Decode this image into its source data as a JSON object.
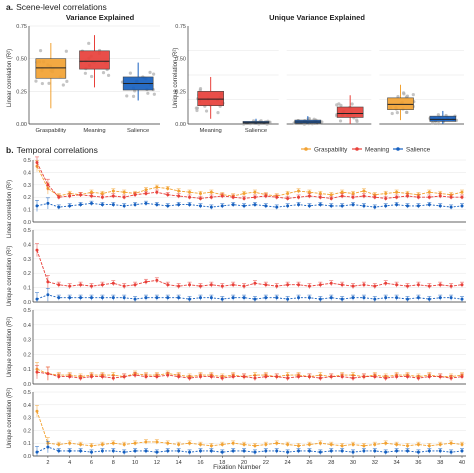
{
  "panel_a": {
    "label": "a.",
    "title": "Scene-level correlations"
  },
  "panel_b": {
    "label": "b.",
    "title": "Temporal correlations"
  },
  "colors": {
    "graspability": "#f2a232",
    "meaning": "#e8403a",
    "salience": "#1660c0",
    "grid": "#e6e6e6",
    "axis": "#333333",
    "points": "#b0b0b0"
  },
  "legend": {
    "items": [
      "Graspability",
      "Meaning",
      "Salience"
    ],
    "placement": "top-right"
  },
  "chart_data": [
    {
      "type": "box",
      "title": "Variance Explained",
      "ylabel": "Linear correlation (R²)",
      "ylim": [
        0,
        0.75
      ],
      "yticks": [
        "0.00",
        "0.25",
        "0.50",
        "0.75"
      ],
      "categories": [
        "Graspability",
        "Meaning",
        "Salience"
      ],
      "boxes": [
        {
          "name": "Graspability",
          "min": 0.12,
          "q1": 0.35,
          "median": 0.43,
          "q3": 0.5,
          "max": 0.62
        },
        {
          "name": "Meaning",
          "min": 0.28,
          "q1": 0.42,
          "median": 0.48,
          "q3": 0.56,
          "max": 0.68
        },
        {
          "name": "Salience",
          "min": 0.18,
          "q1": 0.26,
          "median": 0.31,
          "q3": 0.36,
          "max": 0.47
        }
      ]
    },
    {
      "type": "box",
      "title": "Unique Variance Explained",
      "ylabel": "Unique correlation (R²)",
      "ylim": [
        0,
        0.75
      ],
      "yticks": [
        "0.00",
        "0.25",
        "0.50",
        "0.75"
      ],
      "groups": [
        {
          "categories": [
            "Meaning",
            "Salience"
          ],
          "boxes": [
            {
              "name": "Meaning",
              "min": 0.04,
              "q1": 0.14,
              "median": 0.19,
              "q3": 0.25,
              "max": 0.36
            },
            {
              "name": "Salience",
              "min": 0.0,
              "q1": 0.005,
              "median": 0.01,
              "q3": 0.02,
              "max": 0.04
            }
          ]
        },
        {
          "categories": [],
          "boxes": [
            {
              "name": "Salience",
              "min": 0.0,
              "q1": 0.005,
              "median": 0.015,
              "q3": 0.03,
              "max": 0.06
            },
            {
              "name": "Meaning",
              "min": 0.0,
              "q1": 0.05,
              "median": 0.08,
              "q3": 0.13,
              "max": 0.22
            }
          ]
        },
        {
          "categories": [],
          "boxes": [
            {
              "name": "Graspability",
              "min": 0.03,
              "q1": 0.11,
              "median": 0.15,
              "q3": 0.2,
              "max": 0.3
            },
            {
              "name": "Salience",
              "min": 0.0,
              "q1": 0.02,
              "median": 0.035,
              "q3": 0.06,
              "max": 0.1
            }
          ]
        }
      ]
    },
    {
      "type": "line",
      "ylabel": "Linear correlation (R²)",
      "ylim": [
        0,
        0.5
      ],
      "yticks": [
        "0.0",
        "0.1",
        "0.2",
        "0.3",
        "0.4",
        "0.5"
      ],
      "series": [
        {
          "name": "Graspability",
          "values": [
            0.45,
            0.27,
            0.21,
            0.23,
            0.22,
            0.24,
            0.23,
            0.25,
            0.24,
            0.23,
            0.26,
            0.28,
            0.27,
            0.25,
            0.24,
            0.23,
            0.24,
            0.22,
            0.21,
            0.23,
            0.24,
            0.22,
            0.21,
            0.23,
            0.25,
            0.24,
            0.23,
            0.22,
            0.24,
            0.23,
            0.25,
            0.22,
            0.23,
            0.24,
            0.23,
            0.22,
            0.24,
            0.23,
            0.22,
            0.24
          ]
        },
        {
          "name": "Meaning",
          "values": [
            0.48,
            0.3,
            0.2,
            0.21,
            0.22,
            0.21,
            0.2,
            0.21,
            0.2,
            0.22,
            0.23,
            0.24,
            0.22,
            0.21,
            0.2,
            0.19,
            0.2,
            0.21,
            0.2,
            0.19,
            0.2,
            0.21,
            0.2,
            0.19,
            0.2,
            0.21,
            0.2,
            0.19,
            0.21,
            0.2,
            0.21,
            0.2,
            0.19,
            0.2,
            0.21,
            0.2,
            0.2,
            0.21,
            0.2,
            0.2
          ]
        },
        {
          "name": "Salience",
          "values": [
            0.13,
            0.15,
            0.12,
            0.13,
            0.14,
            0.15,
            0.14,
            0.14,
            0.13,
            0.14,
            0.15,
            0.14,
            0.13,
            0.14,
            0.14,
            0.13,
            0.12,
            0.13,
            0.14,
            0.13,
            0.14,
            0.13,
            0.12,
            0.13,
            0.14,
            0.13,
            0.14,
            0.13,
            0.13,
            0.14,
            0.13,
            0.12,
            0.13,
            0.14,
            0.13,
            0.13,
            0.14,
            0.13,
            0.12,
            0.13
          ]
        }
      ]
    },
    {
      "type": "line",
      "ylabel": "Unique correlation (R²)",
      "ylim": [
        0,
        0.5
      ],
      "yticks": [
        "0.0",
        "0.1",
        "0.2",
        "0.3",
        "0.4",
        "0.5"
      ],
      "series": [
        {
          "name": "Meaning",
          "values": [
            0.36,
            0.14,
            0.12,
            0.11,
            0.12,
            0.11,
            0.12,
            0.13,
            0.11,
            0.12,
            0.14,
            0.15,
            0.12,
            0.11,
            0.12,
            0.11,
            0.12,
            0.11,
            0.12,
            0.11,
            0.13,
            0.12,
            0.11,
            0.12,
            0.12,
            0.11,
            0.12,
            0.13,
            0.12,
            0.11,
            0.12,
            0.11,
            0.13,
            0.12,
            0.11,
            0.12,
            0.11,
            0.12,
            0.11,
            0.12
          ]
        },
        {
          "name": "Salience",
          "values": [
            0.02,
            0.05,
            0.03,
            0.03,
            0.03,
            0.03,
            0.03,
            0.03,
            0.03,
            0.02,
            0.03,
            0.03,
            0.03,
            0.03,
            0.02,
            0.03,
            0.03,
            0.02,
            0.03,
            0.03,
            0.02,
            0.03,
            0.03,
            0.02,
            0.03,
            0.03,
            0.02,
            0.03,
            0.02,
            0.03,
            0.03,
            0.02,
            0.03,
            0.03,
            0.02,
            0.03,
            0.02,
            0.03,
            0.03,
            0.02
          ]
        }
      ]
    },
    {
      "type": "line",
      "ylabel": "Unique correlation (R²)",
      "ylim": [
        0,
        0.5
      ],
      "yticks": [
        "0.0",
        "0.1",
        "0.2",
        "0.3",
        "0.4",
        "0.5"
      ],
      "series": [
        {
          "name": "Graspability",
          "values": [
            0.1,
            0.07,
            0.06,
            0.06,
            0.05,
            0.06,
            0.06,
            0.06,
            0.05,
            0.07,
            0.06,
            0.06,
            0.07,
            0.06,
            0.05,
            0.06,
            0.06,
            0.05,
            0.06,
            0.05,
            0.06,
            0.06,
            0.05,
            0.06,
            0.06,
            0.05,
            0.06,
            0.05,
            0.06,
            0.06,
            0.05,
            0.06,
            0.05,
            0.06,
            0.06,
            0.05,
            0.06,
            0.05,
            0.05,
            0.06
          ]
        },
        {
          "name": "Meaning",
          "values": [
            0.08,
            0.07,
            0.05,
            0.05,
            0.04,
            0.05,
            0.05,
            0.04,
            0.05,
            0.06,
            0.05,
            0.05,
            0.06,
            0.05,
            0.04,
            0.05,
            0.05,
            0.04,
            0.05,
            0.05,
            0.04,
            0.05,
            0.05,
            0.04,
            0.05,
            0.05,
            0.04,
            0.05,
            0.05,
            0.04,
            0.05,
            0.05,
            0.04,
            0.05,
            0.05,
            0.04,
            0.05,
            0.05,
            0.04,
            0.05
          ]
        }
      ]
    },
    {
      "type": "line",
      "ylabel": "Unique correlation (R²)",
      "xlabel": "Fixation Number",
      "ylim": [
        0,
        0.5
      ],
      "yticks": [
        "0.0",
        "0.1",
        "0.2",
        "0.3",
        "0.4",
        "0.5"
      ],
      "xticks": [
        "2",
        "4",
        "6",
        "8",
        "10",
        "12",
        "14",
        "16",
        "18",
        "20",
        "22",
        "24",
        "26",
        "28",
        "30",
        "32",
        "34",
        "36",
        "38",
        "40"
      ],
      "series": [
        {
          "name": "Graspability",
          "values": [
            0.35,
            0.1,
            0.09,
            0.1,
            0.09,
            0.08,
            0.09,
            0.1,
            0.09,
            0.1,
            0.11,
            0.11,
            0.1,
            0.09,
            0.1,
            0.09,
            0.08,
            0.09,
            0.1,
            0.09,
            0.08,
            0.09,
            0.1,
            0.09,
            0.08,
            0.09,
            0.1,
            0.09,
            0.08,
            0.09,
            0.08,
            0.09,
            0.1,
            0.09,
            0.08,
            0.09,
            0.08,
            0.09,
            0.1,
            0.09
          ]
        },
        {
          "name": "Salience",
          "values": [
            0.03,
            0.07,
            0.04,
            0.04,
            0.04,
            0.03,
            0.04,
            0.04,
            0.03,
            0.04,
            0.04,
            0.03,
            0.04,
            0.04,
            0.03,
            0.04,
            0.04,
            0.03,
            0.04,
            0.04,
            0.03,
            0.04,
            0.04,
            0.03,
            0.04,
            0.04,
            0.03,
            0.04,
            0.04,
            0.03,
            0.04,
            0.04,
            0.03,
            0.04,
            0.04,
            0.03,
            0.04,
            0.04,
            0.03,
            0.04
          ]
        }
      ]
    }
  ]
}
